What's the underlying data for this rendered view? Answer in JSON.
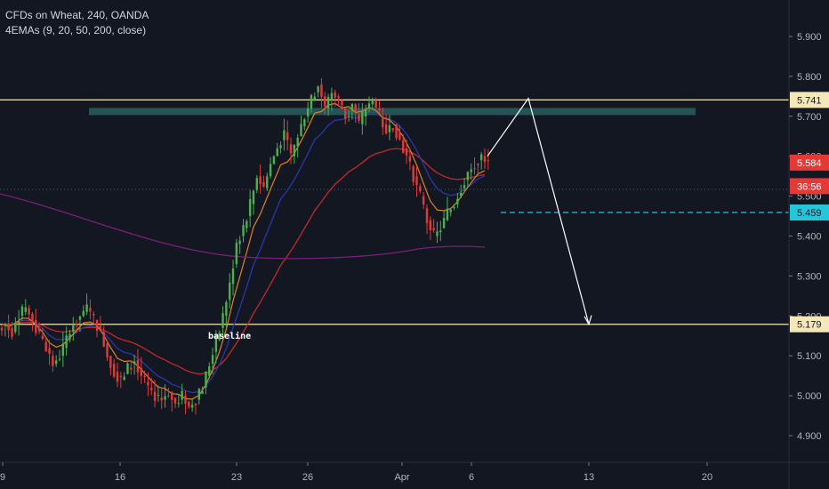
{
  "legend": {
    "line1": "CFDs on Wheat, 240, OANDA",
    "line2": "4EMAs (9, 20, 50, 200, close)"
  },
  "colors": {
    "background": "#131722",
    "bull": "#26a69a",
    "bear": "#ef5350",
    "candle_green": "#4caf50",
    "candle_red": "#e53935",
    "ema9": "#e0822a",
    "ema20": "#2838a8",
    "ema50": "#c62828",
    "ema200": "#7b1f7a",
    "level_line": "#f5e8b8",
    "zone": "#2a5e5e",
    "projection": "#ffffff",
    "dashed_level": "#26c6da",
    "price_badge": "#e53935",
    "teal_badge": "#26c6da"
  },
  "chart_data": {
    "type": "candlestick",
    "y_axis": {
      "ylim": [
        4.83,
        5.98
      ],
      "ticks": [
        "5.900",
        "5.800",
        "5.700",
        "5.600",
        "5.500",
        "5.400",
        "5.300",
        "5.200",
        "5.100",
        "5.000",
        "4.900"
      ]
    },
    "x_axis": {
      "ticks": [
        "9",
        "16",
        "23",
        "26",
        "Apr",
        "6",
        "13",
        "20"
      ]
    },
    "price_labels": [
      {
        "value": 5.741,
        "text": "5.741",
        "style": "level"
      },
      {
        "value": 5.584,
        "text": "5.584",
        "style": "current"
      },
      {
        "value": 5.525,
        "text": "36:56",
        "style": "timer"
      },
      {
        "value": 5.459,
        "text": "5.459",
        "style": "teal"
      },
      {
        "value": 5.179,
        "text": "5.179",
        "style": "level"
      }
    ],
    "horizontal_levels": [
      {
        "value": 5.741,
        "kind": "solid"
      },
      {
        "value": 5.179,
        "kind": "solid"
      },
      {
        "value": 5.459,
        "kind": "dashed"
      },
      {
        "value": 5.517,
        "kind": "dotted"
      }
    ],
    "resistance_zone": {
      "from": 5.703,
      "to": 5.721
    },
    "annotations": [
      {
        "text": "baseline"
      }
    ],
    "ohlc_close_path": [
      5.18,
      5.16,
      5.2,
      5.22,
      5.19,
      5.15,
      5.12,
      5.08,
      5.1,
      5.14,
      5.18,
      5.2,
      5.22,
      5.19,
      5.16,
      5.1,
      5.06,
      5.04,
      5.07,
      5.09,
      5.05,
      5.02,
      5.0,
      4.99,
      5.01,
      4.98,
      5.0,
      4.97,
      4.99,
      5.02,
      5.08,
      5.14,
      5.2,
      5.28,
      5.38,
      5.42,
      5.48,
      5.55,
      5.52,
      5.58,
      5.62,
      5.66,
      5.6,
      5.65,
      5.7,
      5.74,
      5.78,
      5.72,
      5.76,
      5.74,
      5.7,
      5.73,
      5.68,
      5.72,
      5.74,
      5.7,
      5.66,
      5.68,
      5.64,
      5.6,
      5.55,
      5.5,
      5.44,
      5.4,
      5.42,
      5.46,
      5.48,
      5.52,
      5.56,
      5.58,
      5.6,
      5.58
    ],
    "projection": [
      {
        "x_date": "Apr 6",
        "y": 5.6
      },
      {
        "x_date": "Apr 8",
        "y": 5.745
      },
      {
        "x_date": "Apr 13",
        "y": 5.179
      }
    ]
  }
}
